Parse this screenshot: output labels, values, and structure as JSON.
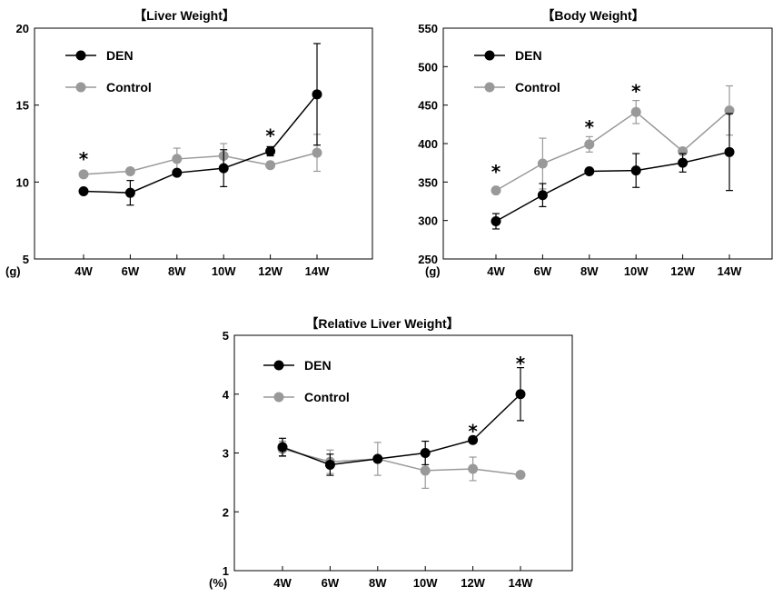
{
  "chart_data": [
    {
      "type": "line",
      "title": "【Liver Weight】",
      "unit_label": "(g)",
      "categories": [
        "4W",
        "6W",
        "8W",
        "10W",
        "12W",
        "14W"
      ],
      "ylim": [
        5,
        20
      ],
      "yticks": [
        5,
        10,
        15,
        20
      ],
      "legend_position": "top-left",
      "series": [
        {
          "name": "DEN",
          "color": "#000000",
          "values": [
            9.4,
            9.3,
            10.6,
            10.9,
            12.0,
            15.7
          ],
          "errors": [
            0.0,
            0.8,
            0.0,
            1.2,
            0.3,
            3.3
          ]
        },
        {
          "name": "Control",
          "color": "#999999",
          "values": [
            10.5,
            10.7,
            11.5,
            11.7,
            11.1,
            11.9
          ],
          "errors": [
            0.0,
            0.0,
            0.7,
            0.8,
            0.0,
            1.2
          ]
        }
      ],
      "annotations": [
        {
          "text": "*",
          "category": "4W",
          "y": 11.8
        },
        {
          "text": "*",
          "category": "12W",
          "y": 13.3
        }
      ]
    },
    {
      "type": "line",
      "title": "【Body Weight】",
      "unit_label": "(g)",
      "categories": [
        "4W",
        "6W",
        "8W",
        "10W",
        "12W",
        "14W"
      ],
      "ylim": [
        250,
        550
      ],
      "yticks": [
        250,
        300,
        350,
        400,
        450,
        500,
        550
      ],
      "legend_position": "top-left",
      "series": [
        {
          "name": "DEN",
          "color": "#000000",
          "values": [
            299,
            333,
            364,
            365,
            375,
            389
          ],
          "errors": [
            10,
            15,
            0,
            22,
            12,
            50
          ]
        },
        {
          "name": "Control",
          "color": "#999999",
          "values": [
            339,
            374,
            399,
            441,
            390,
            443
          ],
          "errors": [
            0,
            33,
            10,
            15,
            0,
            32
          ]
        }
      ],
      "annotations": [
        {
          "text": "*",
          "category": "4W",
          "y": 369
        },
        {
          "text": "*",
          "category": "8W",
          "y": 427
        },
        {
          "text": "*",
          "category": "10W",
          "y": 474
        }
      ]
    },
    {
      "type": "line",
      "title": "【Relative Liver Weight】",
      "unit_label": "(%)",
      "categories": [
        "4W",
        "6W",
        "8W",
        "10W",
        "12W",
        "14W"
      ],
      "ylim": [
        1,
        5
      ],
      "yticks": [
        1,
        2,
        3,
        4,
        5
      ],
      "legend_position": "top-left",
      "series": [
        {
          "name": "DEN",
          "color": "#000000",
          "values": [
            3.1,
            2.8,
            2.9,
            3.0,
            3.22,
            4.0
          ],
          "errors": [
            0.15,
            0.18,
            0.0,
            0.2,
            0.05,
            0.45
          ]
        },
        {
          "name": "Control",
          "color": "#999999",
          "values": [
            3.07,
            2.85,
            2.9,
            2.7,
            2.73,
            2.63
          ],
          "errors": [
            0.13,
            0.2,
            0.28,
            0.3,
            0.2,
            0.0
          ]
        }
      ],
      "annotations": [
        {
          "text": "*",
          "category": "12W",
          "y": 3.45
        },
        {
          "text": "*",
          "category": "14W",
          "y": 4.6
        }
      ]
    }
  ]
}
